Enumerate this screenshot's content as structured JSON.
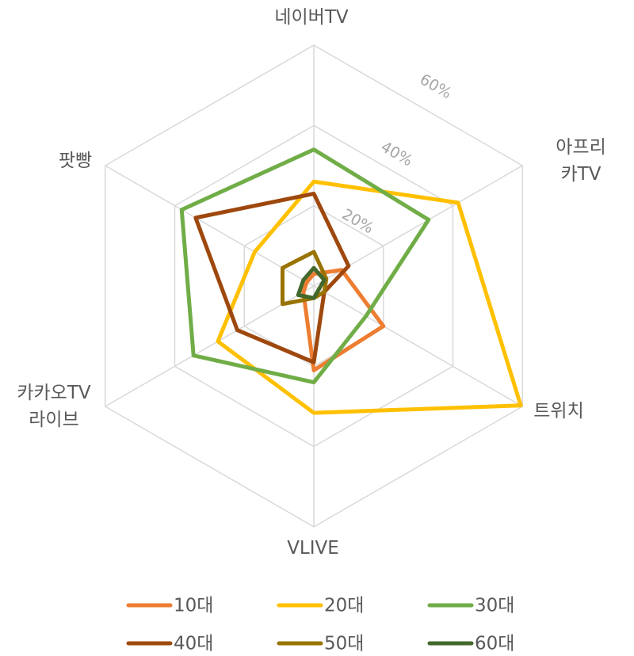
{
  "chart_data": {
    "type": "radar",
    "categories": [
      "네이버TV",
      "아프리카TV",
      "트위치",
      "VLIVE",
      "카카오TV\n라이브",
      "팟빵"
    ],
    "series": [
      {
        "name": "10대",
        "color": "#ED7D31",
        "values": [
          3,
          8,
          20,
          21,
          3,
          2
        ]
      },
      {
        "name": "20대",
        "color": "#FFC000",
        "values": [
          26,
          41.5,
          59.5,
          31.6,
          27.6,
          17
        ]
      },
      {
        "name": "30대",
        "color": "#70AD47",
        "values": [
          34,
          33,
          15,
          24,
          34.6,
          38
        ]
      },
      {
        "name": "40대",
        "color": "#9E480E",
        "values": [
          23,
          10,
          3,
          19,
          22,
          34
        ]
      },
      {
        "name": "50대",
        "color": "#997300",
        "values": [
          8.5,
          3.6,
          3,
          3,
          9,
          9
        ]
      },
      {
        "name": "60대",
        "color": "#43682B",
        "values": [
          4.5,
          3,
          1.5,
          3,
          4.5,
          3
        ]
      }
    ],
    "ylim": [
      0,
      60
    ],
    "yticks": [
      0,
      {
        "value": 20,
        "label": "20%"
      },
      {
        "value": 40,
        "label": "40%"
      },
      {
        "value": 60,
        "label": "60%"
      }
    ],
    "grid": true
  }
}
